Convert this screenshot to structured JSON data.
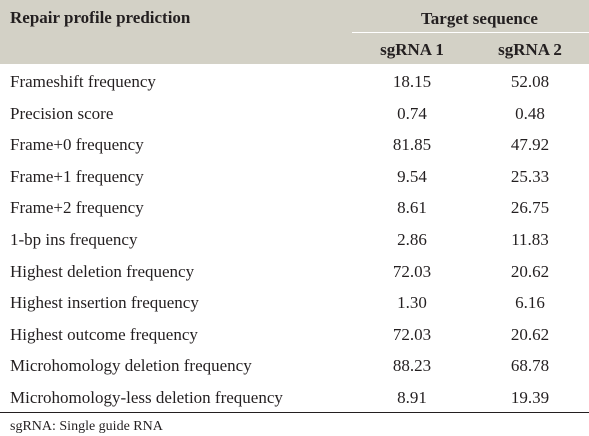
{
  "header": {
    "profile_label": "Repair profile prediction",
    "target_label": "Target sequence",
    "col1_label": "sgRNA 1",
    "col2_label": "sgRNA 2"
  },
  "rows": [
    {
      "label": "Frameshift frequency",
      "v1": "18.15",
      "v2": "52.08"
    },
    {
      "label": "Precision score",
      "v1": "0.74",
      "v2": "0.48"
    },
    {
      "label": "Frame+0 frequency",
      "v1": "81.85",
      "v2": "47.92"
    },
    {
      "label": "Frame+1 frequency",
      "v1": "9.54",
      "v2": "25.33"
    },
    {
      "label": "Frame+2 frequency",
      "v1": "8.61",
      "v2": "26.75"
    },
    {
      "label": "1-bp ins frequency",
      "v1": "2.86",
      "v2": "11.83"
    },
    {
      "label": "Highest deletion frequency",
      "v1": "72.03",
      "v2": "20.62"
    },
    {
      "label": "Highest insertion frequency",
      "v1": "1.30",
      "v2": "6.16"
    },
    {
      "label": "Highest outcome frequency",
      "v1": "72.03",
      "v2": "20.62"
    },
    {
      "label": "Microhomology deletion frequency",
      "v1": "88.23",
      "v2": "68.78"
    },
    {
      "label": "Microhomology-less deletion frequency",
      "v1": "8.91",
      "v2": "19.39"
    }
  ],
  "footnote": "sgRNA: Single guide RNA",
  "colors": {
    "header_bg": "#d3d1c6",
    "text": "#231f20"
  }
}
